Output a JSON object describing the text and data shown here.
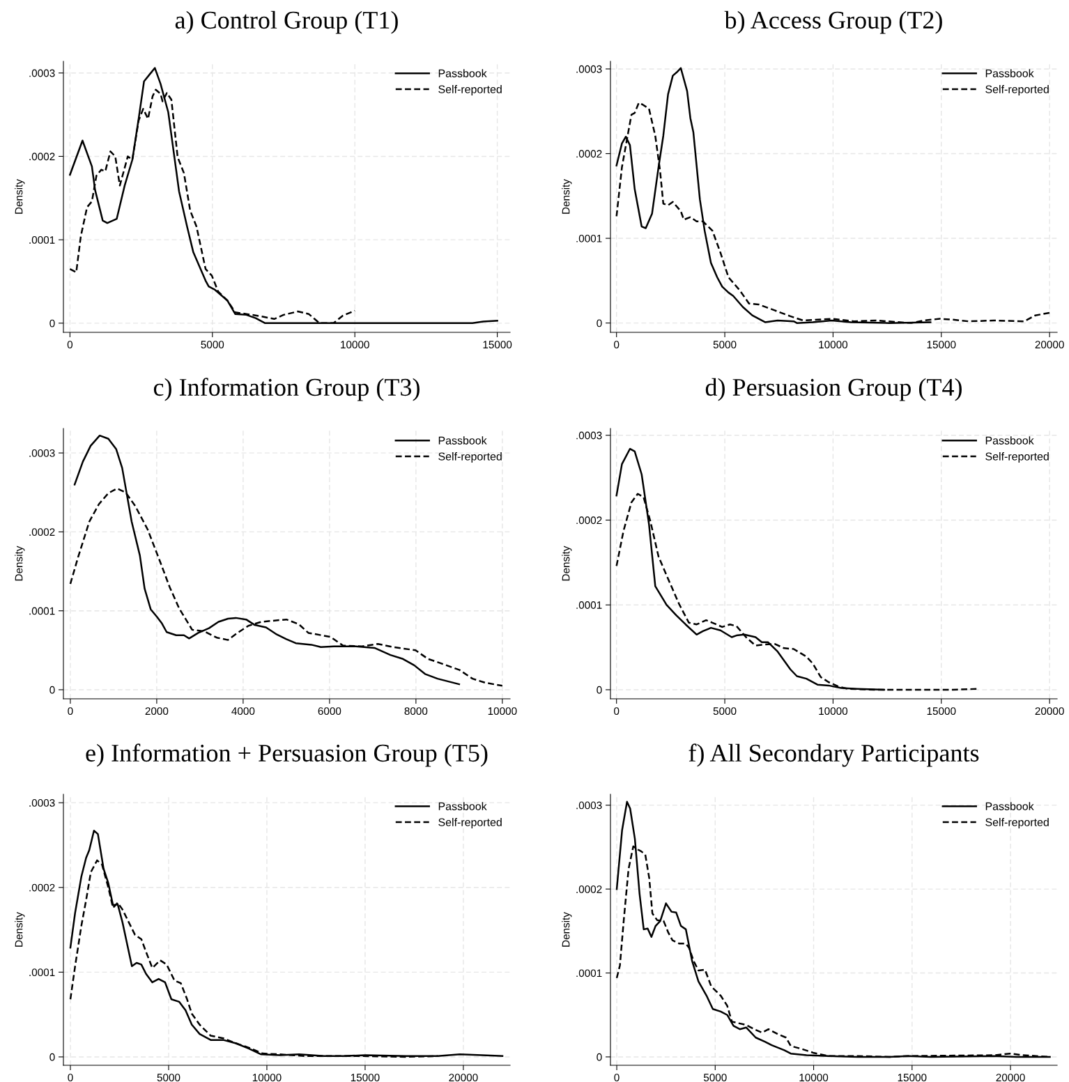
{
  "chart_data": [
    {
      "type": "line",
      "title": "a) Control Group (T1)",
      "ylabel": "Density",
      "legend": "top right",
      "grid": true,
      "xlim": [
        -230,
        15450
      ],
      "xticks": [
        0,
        5000,
        10000,
        15000
      ],
      "ylim": [
        -1.1e-05,
        0.000314
      ],
      "yticks": [
        0,
        {
          "value": 0.0001,
          "label": ".0001"
        },
        {
          "value": 0.0002,
          "label": ".0002"
        },
        {
          "value": 0.0003,
          "label": ".0003"
        }
      ],
      "series": [
        {
          "name": "Passbook",
          "color": "#000000",
          "line_style": "solid",
          "x": [
            0,
            440,
            770,
            880,
            1150,
            1310,
            1640,
            1920,
            2190,
            2410,
            2600,
            2790,
            2980,
            3180,
            3450,
            3830,
            4110,
            4330,
            4760,
            4870,
            5090,
            5530,
            5800,
            6190,
            6520,
            6850,
            14130,
            14510,
            15000
          ],
          "values": [
            0.000178,
            0.000219,
            0.000188,
            0.00016,
            0.000123,
            0.00012,
            0.000125,
            0.000165,
            0.000196,
            0.000245,
            0.00029,
            0.000298,
            0.000306,
            0.000287,
            0.000253,
            0.000158,
            0.000116,
            8.5e-05,
            5.1e-05,
            4.4e-05,
            4e-05,
            2.7e-05,
            1.1e-05,
            1e-05,
            6e-06,
            0,
            0,
            2e-06,
            3e-06
          ]
        },
        {
          "name": "Self-reported",
          "color": "#000000",
          "line_style": "dashed",
          "x": [
            0,
            220,
            380,
            600,
            770,
            930,
            1100,
            1240,
            1420,
            1590,
            1750,
            2030,
            2190,
            2410,
            2570,
            2740,
            2900,
            3010,
            3180,
            3250,
            3400,
            3560,
            3780,
            4000,
            4220,
            4440,
            4760,
            4980,
            5200,
            5530,
            5800,
            6190,
            6740,
            7170,
            7500,
            8000,
            8380,
            8760,
            9250,
            9580,
            10000
          ],
          "values": [
            6.5e-05,
            6.1e-05,
            0.000104,
            0.000139,
            0.000146,
            0.000177,
            0.000184,
            0.000182,
            0.000206,
            0.0002,
            0.000165,
            0.0002,
            0.000196,
            0.000243,
            0.000257,
            0.000245,
            0.000272,
            0.00028,
            0.000275,
            0.000266,
            0.000276,
            0.000268,
            0.000199,
            0.00018,
            0.000135,
            0.000116,
            6.5e-05,
            5.7e-05,
            3.8e-05,
            2.7e-05,
            1.3e-05,
            1.1e-05,
            8e-06,
            5e-06,
            1e-05,
            1.4e-05,
            1.1e-05,
            0,
            0,
            9e-06,
            1.5e-05
          ]
        }
      ]
    },
    {
      "type": "line",
      "title": "b) Access Group (T2)",
      "ylabel": "Density",
      "legend": "top right",
      "grid": true,
      "xlim": [
        -280,
        20350
      ],
      "xticks": [
        0,
        5000,
        10000,
        15000,
        20000
      ],
      "ylim": [
        -1.1e-05,
        0.000309
      ],
      "yticks": [
        0,
        {
          "value": 0.0001,
          "label": ".0001"
        },
        {
          "value": 0.0002,
          "label": ".0002"
        },
        {
          "value": 0.0003,
          "label": ".0003"
        }
      ],
      "series": [
        {
          "name": "Passbook",
          "color": "#000000",
          "line_style": "solid",
          "x": [
            0,
            250,
            430,
            620,
            840,
            1160,
            1350,
            1640,
            1940,
            2160,
            2380,
            2600,
            2780,
            2970,
            3260,
            3410,
            3550,
            3850,
            4070,
            4360,
            4650,
            4880,
            5170,
            5390,
            5830,
            6270,
            6860,
            7440,
            8180,
            8330,
            9060,
            9940,
            10820,
            12580,
            14500
          ],
          "values": [
            0.000186,
            0.000212,
            0.00022,
            0.00021,
            0.000158,
            0.000114,
            0.000112,
            0.000129,
            0.000184,
            0.000221,
            0.00027,
            0.000292,
            0.000296,
            0.000301,
            0.000274,
            0.000242,
            0.000225,
            0.000146,
            0.000109,
            7.1e-05,
            5.4e-05,
            4.3e-05,
            3.6e-05,
            3.2e-05,
            1.9e-05,
            9e-06,
            1e-06,
            3e-06,
            2e-06,
            0,
            1e-06,
            3e-06,
            1e-06,
            0,
            1e-06
          ]
        },
        {
          "name": "Self-reported",
          "color": "#000000",
          "line_style": "dashed",
          "x": [
            0,
            250,
            540,
            690,
            840,
            1030,
            1200,
            1500,
            1790,
            2010,
            2160,
            2380,
            2600,
            2970,
            3110,
            3410,
            3700,
            3990,
            4430,
            4800,
            5170,
            5680,
            6120,
            6560,
            7300,
            8030,
            8620,
            9940,
            10960,
            11990,
            13600,
            14200,
            14930,
            15520,
            16260,
            17430,
            18830,
            19340,
            20000
          ],
          "values": [
            0.000126,
            0.000184,
            0.000225,
            0.000246,
            0.000248,
            0.00026,
            0.000258,
            0.000253,
            0.000221,
            0.00018,
            0.000141,
            0.000139,
            0.000143,
            0.000132,
            0.000122,
            0.000125,
            0.00012,
            0.00012,
            0.000109,
            8.3e-05,
            5.4e-05,
            3.9e-05,
            2.3e-05,
            2.2e-05,
            1.5e-05,
            8e-06,
            3e-06,
            5e-06,
            2e-06,
            3e-06,
            0,
            3e-06,
            5e-06,
            4e-06,
            2e-06,
            3e-06,
            2e-06,
            9e-06,
            1.2e-05
          ]
        }
      ]
    },
    {
      "type": "line",
      "title": "c) Information Group (T3)",
      "ylabel": "Density",
      "legend": "top right",
      "grid": true,
      "xlim": [
        -160,
        10180
      ],
      "xticks": [
        0,
        2000,
        4000,
        6000,
        8000,
        10000
      ],
      "ylim": [
        -1.15e-05,
        0.000331
      ],
      "yticks": [
        0,
        {
          "value": 0.0001,
          "label": ".0001"
        },
        {
          "value": 0.0002,
          "label": ".0002"
        },
        {
          "value": 0.0003,
          "label": ".0003"
        }
      ],
      "series": [
        {
          "name": "Passbook",
          "color": "#000000",
          "line_style": "solid",
          "x": [
            100,
            290,
            470,
            680,
            880,
            1060,
            1200,
            1420,
            1610,
            1720,
            1860,
            2010,
            2120,
            2230,
            2450,
            2630,
            2750,
            2960,
            3210,
            3430,
            3650,
            3830,
            4070,
            4270,
            4530,
            4780,
            5000,
            5220,
            5580,
            5800,
            6100,
            6610,
            7040,
            7410,
            7700,
            7960,
            8210,
            8500,
            9000
          ],
          "values": [
            0.00026,
            0.000289,
            0.000309,
            0.000322,
            0.000318,
            0.000305,
            0.000281,
            0.000213,
            0.00017,
            0.000128,
            0.000102,
            9.2e-05,
            8.4e-05,
            7.3e-05,
            6.9e-05,
            6.9e-05,
            6.5e-05,
            7.2e-05,
            7.8e-05,
            8.6e-05,
            9e-05,
            9.1e-05,
            8.9e-05,
            8.2e-05,
            7.9e-05,
            7e-05,
            6.4e-05,
            5.9e-05,
            5.7e-05,
            5.4e-05,
            5.5e-05,
            5.5e-05,
            5.3e-05,
            4.4e-05,
            3.9e-05,
            3.1e-05,
            2e-05,
            1.4e-05,
            7e-06
          ]
        },
        {
          "name": "Self-reported",
          "color": "#000000",
          "line_style": "dashed",
          "x": [
            0,
            180,
            440,
            660,
            880,
            1080,
            1280,
            1500,
            1790,
            2080,
            2300,
            2520,
            2820,
            3100,
            3390,
            3650,
            3870,
            4120,
            4420,
            5000,
            5290,
            5510,
            6020,
            6310,
            6750,
            7120,
            7480,
            7990,
            8280,
            8500,
            9010,
            9310,
            9600,
            10000
          ],
          "values": [
            0.000134,
            0.000168,
            0.000213,
            0.000235,
            0.000249,
            0.000255,
            0.00025,
            0.000233,
            0.000203,
            0.000162,
            0.00013,
            0.000103,
            7.6e-05,
            7.4e-05,
            6.6e-05,
            6.3e-05,
            7.2e-05,
            8.1e-05,
            8.6e-05,
            8.9e-05,
            8.3e-05,
            7.2e-05,
            6.7e-05,
            5.6e-05,
            5.5e-05,
            5.8e-05,
            5.4e-05,
            5e-05,
            3.9e-05,
            3.5e-05,
            2.5e-05,
            1.4e-05,
            9e-06,
            5e-06
          ]
        }
      ]
    },
    {
      "type": "line",
      "title": "d) Persuasion Group (T4)",
      "ylabel": "Density",
      "legend": "top right",
      "grid": true,
      "xlim": [
        -280,
        20350
      ],
      "xticks": [
        0,
        5000,
        10000,
        15000,
        20000
      ],
      "ylim": [
        -1.07e-05,
        0.000308
      ],
      "yticks": [
        0,
        {
          "value": 0.0001,
          "label": ".0001"
        },
        {
          "value": 0.0002,
          "label": ".0002"
        },
        {
          "value": 0.0003,
          "label": ".0003"
        }
      ],
      "series": [
        {
          "name": "Passbook",
          "color": "#000000",
          "line_style": "solid",
          "x": [
            0,
            250,
            620,
            840,
            1160,
            1500,
            1790,
            2310,
            2750,
            3190,
            3700,
            3990,
            4360,
            4800,
            5320,
            5540,
            5900,
            6420,
            6710,
            7000,
            7440,
            8030,
            8330,
            8770,
            9280,
            9790,
            10380,
            11120,
            12360
          ],
          "values": [
            0.000229,
            0.000266,
            0.000284,
            0.000281,
            0.000254,
            0.000195,
            0.000122,
            0.0001,
            8.8e-05,
            7.7e-05,
            6.5e-05,
            6.9e-05,
            7.3e-05,
            7e-05,
            6.2e-05,
            6.4e-05,
            6.5e-05,
            6.2e-05,
            5.6e-05,
            5.6e-05,
            4.5e-05,
            2.4e-05,
            1.6e-05,
            1.3e-05,
            6e-06,
            5e-06,
            2e-06,
            1e-06,
            0
          ]
        },
        {
          "name": "Self-reported",
          "color": "#000000",
          "line_style": "dashed",
          "x": [
            0,
            320,
            690,
            980,
            1250,
            1570,
            1940,
            2310,
            2890,
            3340,
            3700,
            4140,
            4430,
            4880,
            5240,
            5540,
            5980,
            6420,
            6710,
            7300,
            7740,
            8180,
            8770,
            9060,
            9430,
            9790,
            10230,
            10680,
            12000,
            15520,
            16700
          ],
          "values": [
            0.000146,
            0.000187,
            0.000221,
            0.000231,
            0.000227,
            0.000198,
            0.000157,
            0.000135,
            0.000101,
            7.9e-05,
            7.7e-05,
            8.2e-05,
            7.9e-05,
            7.4e-05,
            7.7e-05,
            7.5e-05,
            6.2e-05,
            5.2e-05,
            5.3e-05,
            5.4e-05,
            4.9e-05,
            4.8e-05,
            3.9e-05,
            3.1e-05,
            1.5e-05,
            9e-06,
            4e-06,
            1e-06,
            0,
            0,
            1e-06
          ]
        }
      ]
    },
    {
      "type": "line",
      "title": "e) Information + Persuasion Group (T5)",
      "ylabel": "Density",
      "legend": "top right",
      "grid": true,
      "xlim": [
        -355,
        22380
      ],
      "xticks": [
        0,
        5000,
        10000,
        15000,
        20000
      ],
      "ylim": [
        -9.9e-06,
        0.00031
      ],
      "yticks": [
        0,
        {
          "value": 0.0001,
          "label": ".0001"
        },
        {
          "value": 0.0002,
          "label": ".0002"
        },
        {
          "value": 0.0003,
          "label": ".0003"
        }
      ],
      "series": [
        {
          "name": "Passbook",
          "color": "#000000",
          "line_style": "solid",
          "x": [
            0,
            240,
            560,
            800,
            960,
            1200,
            1400,
            1690,
            1930,
            2170,
            2410,
            2650,
            2890,
            3130,
            3370,
            3610,
            3850,
            4170,
            4490,
            4820,
            5140,
            5540,
            5860,
            6180,
            6580,
            7140,
            7780,
            8430,
            9070,
            9710,
            10670,
            11640,
            12920,
            13880,
            15010,
            17090,
            18700,
            19820,
            20950,
            21990
          ],
          "values": [
            0.000129,
            0.00017,
            0.000213,
            0.000235,
            0.000244,
            0.000267,
            0.000263,
            0.000222,
            0.000205,
            0.000179,
            0.00018,
            0.000159,
            0.000133,
            0.000107,
            0.000111,
            0.000109,
            9.8e-05,
            8.8e-05,
            9.2e-05,
            8.8e-05,
            6.8e-05,
            6.5e-05,
            5.5e-05,
            3.8e-05,
            2.7e-05,
            2e-05,
            2e-05,
            1.6e-05,
            1e-05,
            3e-06,
            2e-06,
            3e-06,
            1e-06,
            1e-06,
            2e-06,
            1e-06,
            1e-06,
            3e-06,
            2e-06,
            1e-06
          ]
        },
        {
          "name": "Self-reported",
          "color": "#000000",
          "line_style": "dashed",
          "x": [
            0,
            240,
            560,
            800,
            1040,
            1360,
            1610,
            1930,
            2170,
            2410,
            2650,
            2970,
            3290,
            3610,
            3850,
            4170,
            4570,
            4900,
            5300,
            5620,
            5940,
            6180,
            6580,
            7140,
            7780,
            8430,
            9070,
            9790,
            10670,
            11960,
            12920,
            14690,
            17090,
            18700
          ],
          "values": [
            6.8e-05,
            0.000107,
            0.000155,
            0.000185,
            0.000218,
            0.000232,
            0.000227,
            0.0002,
            0.000176,
            0.000182,
            0.000174,
            0.000159,
            0.000144,
            0.000139,
            0.000124,
            0.000105,
            0.000114,
            0.000109,
            9e-05,
            8.7e-05,
            6.8e-05,
            5.1e-05,
            3.8e-05,
            2.5e-05,
            2.2e-05,
            1.6e-05,
            1.1e-05,
            4e-06,
            3e-06,
            1e-06,
            1e-06,
            1e-06,
            0,
            1e-06
          ]
        }
      ]
    },
    {
      "type": "line",
      "title": "f) All Secondary Participants",
      "ylabel": "Density",
      "legend": "top right",
      "grid": true,
      "xlim": [
        -320,
        22370
      ],
      "xticks": [
        0,
        5000,
        10000,
        15000,
        20000
      ],
      "ylim": [
        -1e-05,
        0.000313
      ],
      "yticks": [
        0,
        {
          "value": 0.0001,
          "label": ".0001"
        },
        {
          "value": 0.0002,
          "label": ".0002"
        },
        {
          "value": 0.0003,
          "label": ".0003"
        }
      ],
      "series": [
        {
          "name": "Passbook",
          "color": "#000000",
          "line_style": "solid",
          "x": [
            0,
            270,
            520,
            680,
            920,
            1160,
            1370,
            1570,
            1760,
            1970,
            2210,
            2500,
            2780,
            3020,
            3260,
            3510,
            3830,
            4150,
            4560,
            4880,
            5280,
            5610,
            5930,
            6250,
            6580,
            7060,
            7540,
            7870,
            8510,
            8840,
            9640,
            10770,
            12230,
            13850,
            14810,
            15950,
            19180,
            20310,
            22000
          ],
          "values": [
            0.0002,
            0.00027,
            0.000304,
            0.000296,
            0.00026,
            0.000194,
            0.000152,
            0.000153,
            0.000143,
            0.000156,
            0.000162,
            0.000183,
            0.000173,
            0.000172,
            0.000156,
            0.000152,
            0.000114,
            9e-05,
            7.3e-05,
            5.7e-05,
            5.4e-05,
            5e-05,
            3.7e-05,
            3.3e-05,
            3.5e-05,
            2.3e-05,
            1.8e-05,
            1.4e-05,
            8e-06,
            4e-06,
            2e-06,
            1e-06,
            0,
            0,
            1e-06,
            0,
            1e-06,
            0,
            0
          ]
        },
        {
          "name": "Self-reported",
          "color": "#000000",
          "line_style": "dashed",
          "x": [
            0,
            160,
            360,
            600,
            840,
            1080,
            1240,
            1450,
            1650,
            1810,
            2050,
            2380,
            2620,
            2830,
            3180,
            3510,
            3670,
            3910,
            4150,
            4480,
            4800,
            5280,
            5610,
            5850,
            6580,
            6980,
            7380,
            7710,
            8190,
            8600,
            8840,
            9320,
            9970,
            10770,
            12230,
            13850,
            14810,
            19180,
            19980,
            20630,
            22000
          ],
          "values": [
            9.4e-05,
            0.000109,
            0.000164,
            0.000224,
            0.000251,
            0.000247,
            0.000245,
            0.000241,
            0.000213,
            0.000171,
            0.000163,
            0.000162,
            0.000148,
            0.000139,
            0.000135,
            0.000135,
            0.00013,
            0.000114,
            0.000103,
            0.000104,
            8.4e-05,
            7.3e-05,
            6.1e-05,
            4.2e-05,
            3.8e-05,
            3.3e-05,
            2.9e-05,
            3.3e-05,
            2.7e-05,
            2.3e-05,
            1.3e-05,
            1e-05,
            5e-06,
            1e-06,
            1e-06,
            0,
            1e-06,
            2e-06,
            4e-06,
            2e-06,
            0
          ]
        }
      ]
    }
  ]
}
